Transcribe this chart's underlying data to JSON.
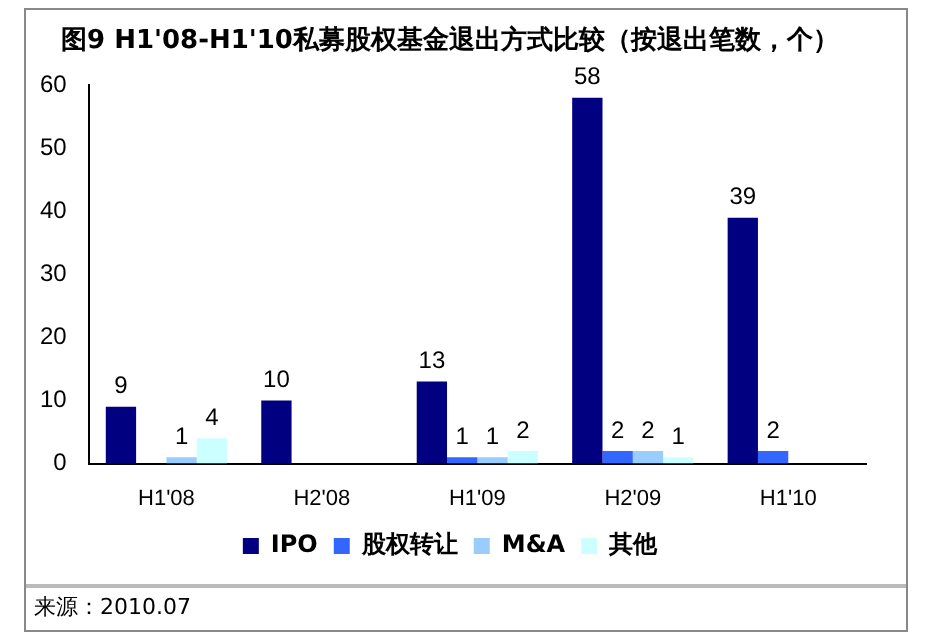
{
  "chart_data": {
    "type": "bar",
    "title": "图9 H1'08-H1'10私募股权基金退出方式比较（按退出笔数，个）",
    "categories": [
      "H1'08",
      "H2'08",
      "H1'09",
      "H2'09",
      "H1'10"
    ],
    "series": [
      {
        "name": "IPO",
        "color": "#000080",
        "values": [
          9,
          10,
          13,
          58,
          39
        ]
      },
      {
        "name": "股权转让",
        "color": "#3366ff",
        "values": [
          null,
          null,
          1,
          2,
          2
        ]
      },
      {
        "name": "M&A",
        "color": "#99ccff",
        "values": [
          1,
          null,
          1,
          2,
          null
        ]
      },
      {
        "name": "其他",
        "color": "#ccffff",
        "values": [
          4,
          null,
          2,
          1,
          null
        ]
      }
    ],
    "ylim": [
      0,
      60
    ],
    "yticks": [
      0,
      10,
      20,
      30,
      40,
      50,
      60
    ],
    "grid": false,
    "legend": "bottom",
    "data_labels": true,
    "annotations": [
      "来源：2010.07"
    ]
  }
}
